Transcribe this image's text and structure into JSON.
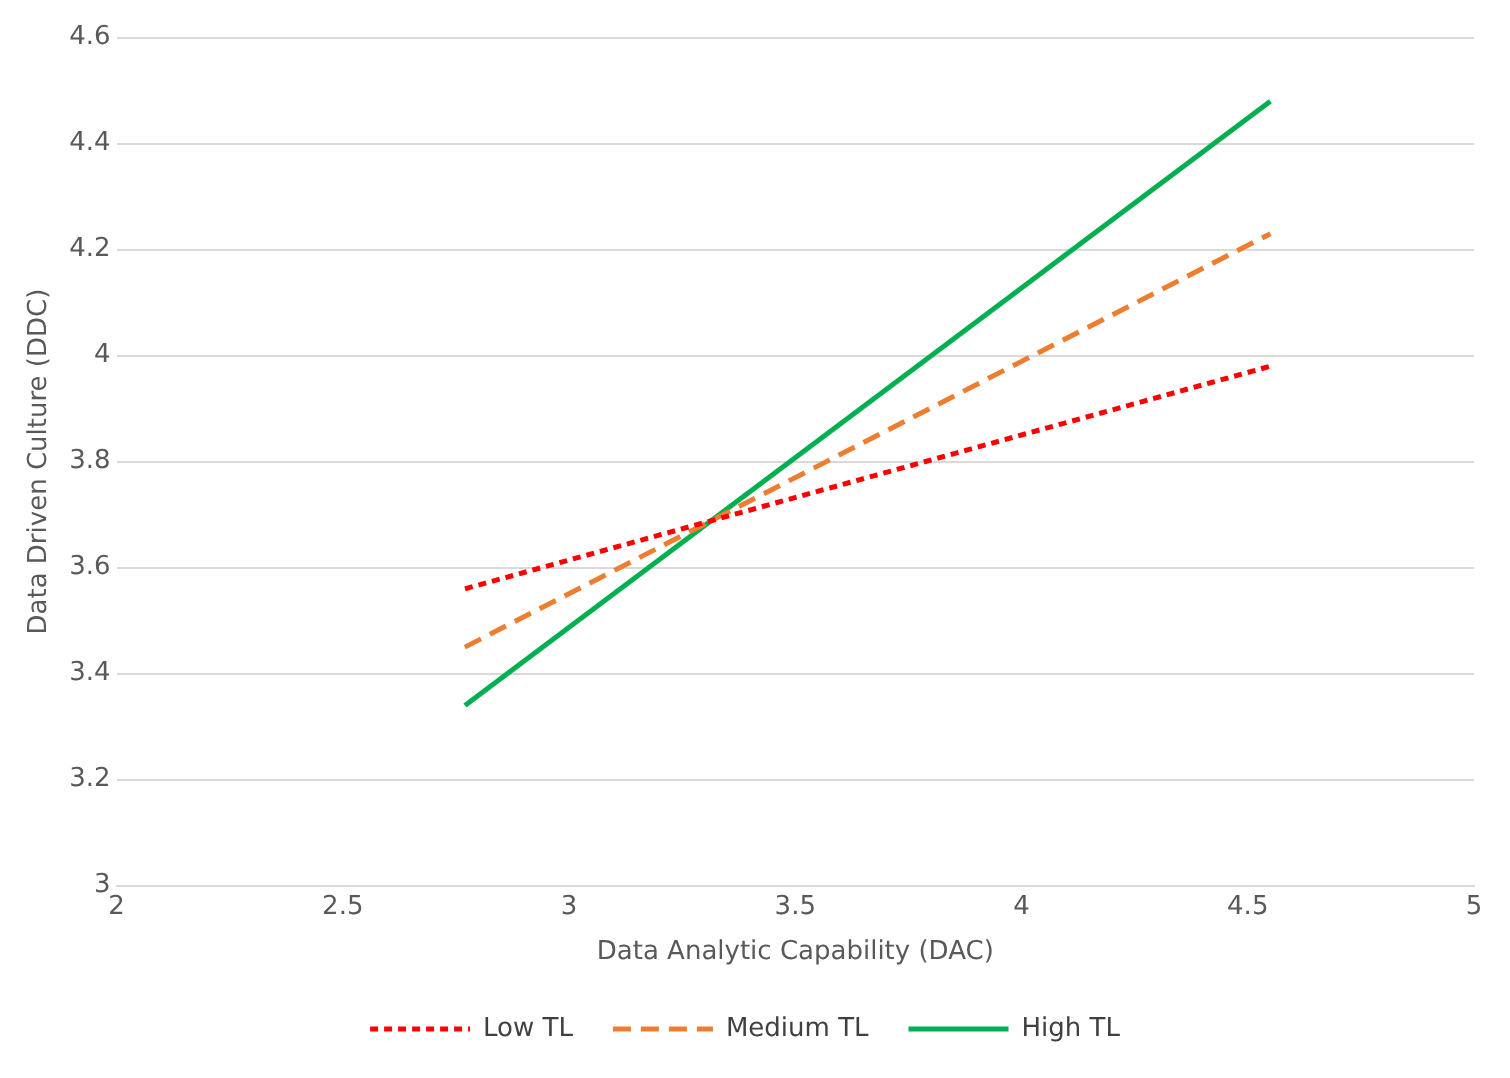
{
  "chart_data": {
    "type": "line",
    "xlabel": "Data Analytic Capability (DAC)",
    "ylabel": "Data Driven Culture (DDC)",
    "x": [
      2.77,
      4.55
    ],
    "xlim": [
      2,
      5
    ],
    "xticks": [
      2,
      2.5,
      3,
      3.5,
      4,
      4.5,
      5
    ],
    "ylim": [
      3,
      4.6
    ],
    "yticks": [
      3,
      3.2,
      3.4,
      3.6,
      3.8,
      4,
      4.2,
      4.4,
      4.6
    ],
    "grid": "y",
    "legend": "bottom",
    "marker": "none",
    "series": [
      {
        "name": "Low TL",
        "color": "#ff0000",
        "values": [
          3.56,
          3.98
        ],
        "line_style": "dotted"
      },
      {
        "name": "Medium TL",
        "color": "#ed7d31",
        "values": [
          3.45,
          4.23
        ],
        "line_style": "dashed"
      },
      {
        "name": "High TL",
        "color": "#00b050",
        "values": [
          3.34,
          4.48
        ],
        "line_style": "solid"
      }
    ]
  }
}
